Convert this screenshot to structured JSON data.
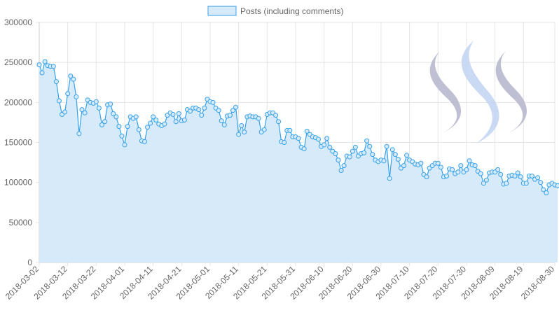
{
  "chart_data": {
    "type": "area",
    "title": "",
    "xlabel": "",
    "ylabel": "",
    "x_start": "2018-03-02",
    "x_end": "2018-08-30",
    "ylim": [
      0,
      300000
    ],
    "y_ticks": [
      0,
      50000,
      100000,
      150000,
      200000,
      250000,
      300000
    ],
    "y_tick_labels": [
      "0",
      "50000",
      "100000",
      "150000",
      "200000",
      "250000",
      "300000"
    ],
    "x_tick_labels": [
      "2018-03-02",
      "2018-03-12",
      "2018-03-22",
      "2018-04-01",
      "2018-04-11",
      "2018-04-21",
      "2018-05-01",
      "2018-05-11",
      "2018-05-21",
      "2018-05-31",
      "2018-06-10",
      "2018-06-20",
      "2018-06-30",
      "2018-07-10",
      "2018-07-20",
      "2018-07-30",
      "2018-08-09",
      "2018-08-19",
      "2018-08-30"
    ],
    "grid": true,
    "legend_position": "top-center",
    "colors": {
      "line": "#36a2eb",
      "fill": "#d6eafa",
      "grid": "#e5e5e5"
    },
    "series": [
      {
        "name": "Posts (including comments)",
        "values": [
          247000,
          237000,
          251000,
          246000,
          245000,
          245000,
          226000,
          202000,
          185000,
          188000,
          211000,
          233000,
          229000,
          207000,
          161000,
          191000,
          187000,
          203000,
          200000,
          199000,
          201000,
          193000,
          172000,
          176000,
          197000,
          198000,
          186000,
          182000,
          170000,
          158000,
          147000,
          170000,
          182000,
          180000,
          182000,
          166000,
          152000,
          151000,
          169000,
          174000,
          182000,
          178000,
          173000,
          171000,
          173000,
          184000,
          187000,
          185000,
          176000,
          186000,
          177000,
          178000,
          191000,
          189000,
          193000,
          193000,
          191000,
          184000,
          193000,
          204000,
          201000,
          200000,
          193000,
          190000,
          177000,
          172000,
          183000,
          184000,
          190000,
          194000,
          160000,
          171000,
          163000,
          182000,
          183000,
          182000,
          182000,
          180000,
          163000,
          166000,
          185000,
          187000,
          187000,
          184000,
          176000,
          151000,
          150000,
          165000,
          165000,
          157000,
          157000,
          155000,
          144000,
          142000,
          164000,
          160000,
          157000,
          156000,
          154000,
          145000,
          147000,
          155000,
          144000,
          139000,
          136000,
          128000,
          115000,
          121000,
          133000,
          132000,
          139000,
          144000,
          133000,
          136000,
          137000,
          152000,
          145000,
          135000,
          128000,
          126000,
          128000,
          127000,
          145000,
          105000,
          141000,
          135000,
          129000,
          118000,
          121000,
          134000,
          128000,
          126000,
          123000,
          122000,
          124000,
          110000,
          107000,
          118000,
          121000,
          124000,
          124000,
          119000,
          107000,
          108000,
          117000,
          116000,
          111000,
          113000,
          121000,
          113000,
          116000,
          127000,
          122000,
          121000,
          114000,
          111000,
          99000,
          103000,
          112000,
          113000,
          113000,
          116000,
          110000,
          98000,
          99000,
          108000,
          109000,
          108000,
          112000,
          107000,
          99000,
          99000,
          108000,
          108000,
          104000,
          106000,
          100000,
          91000,
          87000,
          97000,
          99000,
          97000,
          96000
        ]
      }
    ]
  }
}
